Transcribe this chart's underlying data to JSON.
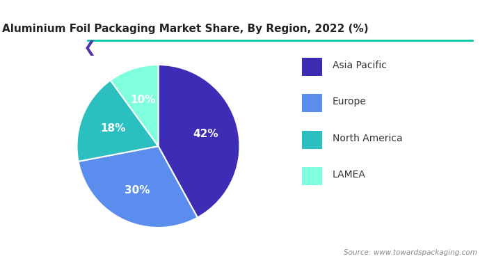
{
  "title": "Aluminium Foil Packaging Market Share, By Region, 2022 (%)",
  "slices": [
    42,
    30,
    18,
    10
  ],
  "labels": [
    "42%",
    "30%",
    "18%",
    "10%"
  ],
  "legend_labels": [
    "Asia Pacific",
    "Europe",
    "North America",
    "LAMEA"
  ],
  "colors": [
    "#3d2db5",
    "#5b8dee",
    "#2bbfbf",
    "#7fffdd"
  ],
  "source_text": "Source: www.towardspackaging.com",
  "background_color": "#ffffff",
  "startangle": 90
}
